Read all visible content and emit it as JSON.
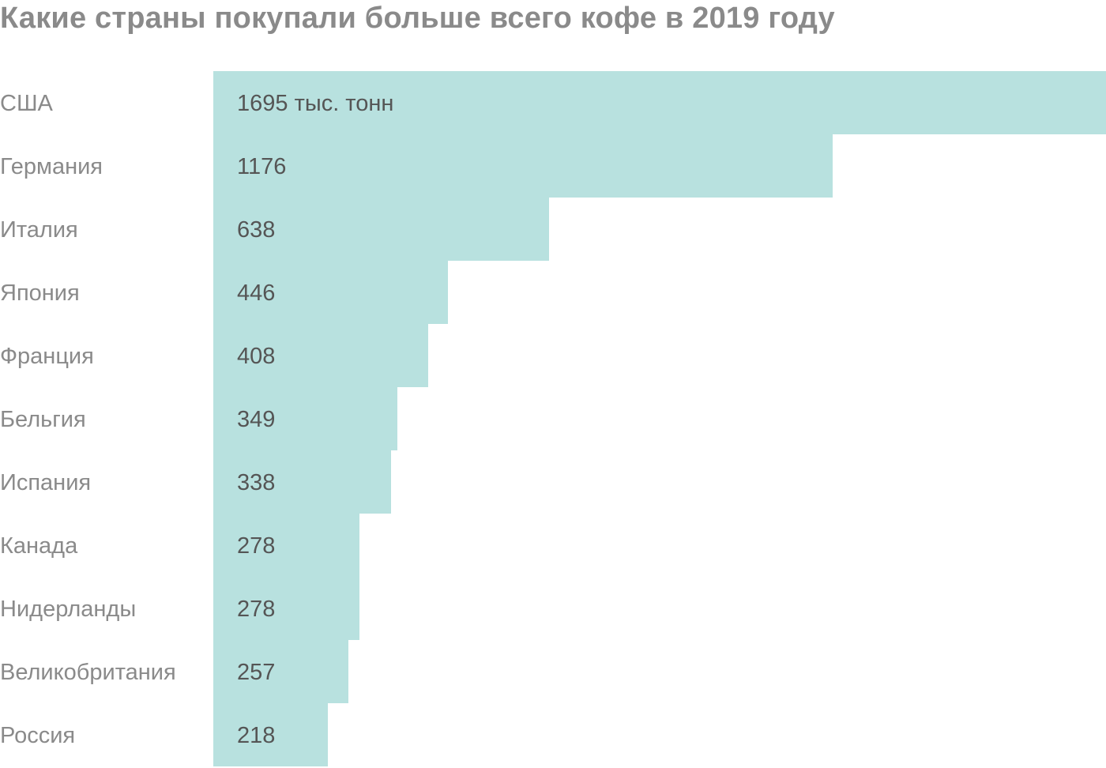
{
  "colors": {
    "bar": "#b8e1df",
    "title": "#8a8a8a",
    "category_text": "#8a8a8a",
    "value_text": "#555555"
  },
  "chart_data": {
    "type": "bar",
    "orientation": "horizontal",
    "title": "Какие страны покупали больше всего кофе в 2019 году",
    "xlabel": "",
    "ylabel": "",
    "unit": "тыс. тонн",
    "xlim": [
      0,
      1695
    ],
    "grid": false,
    "legend": "none",
    "categories": [
      "США",
      "Германия",
      "Италия",
      "Япония",
      "Франция",
      "Бельгия",
      "Испания",
      "Канада",
      "Нидерланды",
      "Великобритания",
      "Россия"
    ],
    "values": [
      1695,
      1176,
      638,
      446,
      408,
      349,
      338,
      278,
      278,
      257,
      218
    ],
    "value_labels": [
      "1695 тыс. тонн",
      "1176",
      "638",
      "446",
      "408",
      "349",
      "338",
      "278",
      "278",
      "257",
      "218"
    ]
  }
}
